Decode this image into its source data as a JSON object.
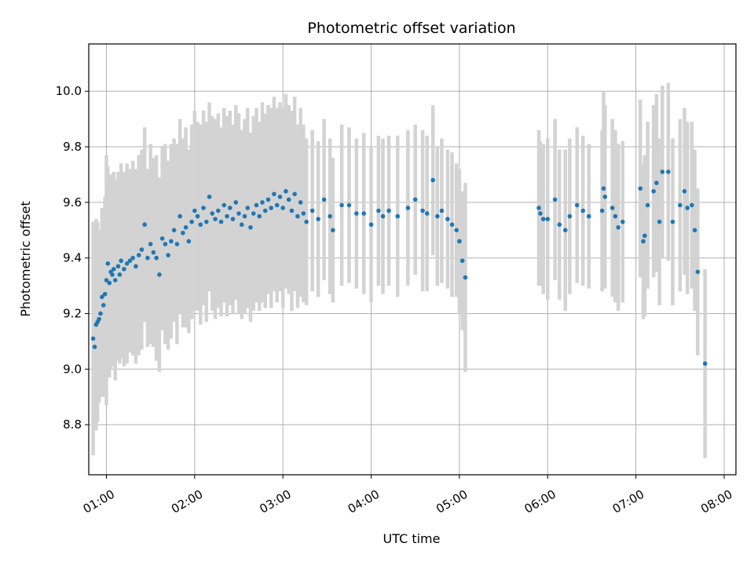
{
  "chart_data": {
    "type": "scatter",
    "title": "Photometric offset variation",
    "xlabel": "UTC time",
    "ylabel": "Photometric offset",
    "xlim": [
      "00:48",
      "08:08"
    ],
    "ylim": [
      8.62,
      10.17
    ],
    "x_ticks": [
      "01:00",
      "02:00",
      "03:00",
      "04:00",
      "05:00",
      "06:00",
      "07:00",
      "08:00"
    ],
    "y_ticks": [
      "8.8",
      "9.0",
      "9.2",
      "9.4",
      "9.6",
      "9.8",
      "10.0"
    ],
    "grid": true,
    "legend": "none",
    "colors": {
      "points": "#1f77b4",
      "error_bars": "#d3d3d3",
      "grid": "#b0b0b0"
    },
    "series": [
      {
        "values_format": "[UTC time, offset, error]",
        "points": [
          [
            "00:51",
            9.11,
            0.42
          ],
          [
            "00:52",
            9.08,
            0.27
          ],
          [
            "00:53",
            9.16,
            0.38
          ],
          [
            "00:54",
            9.17,
            0.36
          ],
          [
            "00:55",
            9.18,
            0.3
          ],
          [
            "00:56",
            9.2,
            0.3
          ],
          [
            "00:57",
            9.26,
            0.32
          ],
          [
            "00:58",
            9.23,
            0.33
          ],
          [
            "00:59",
            9.27,
            0.35
          ],
          [
            "01:00",
            9.32,
            0.45
          ],
          [
            "01:01",
            9.38,
            0.35
          ],
          [
            "01:02",
            9.31,
            0.34
          ],
          [
            "01:03",
            9.35,
            0.35
          ],
          [
            "01:04",
            9.34,
            0.33
          ],
          [
            "01:05",
            9.36,
            0.35
          ],
          [
            "01:06",
            9.32,
            0.36
          ],
          [
            "01:08",
            9.37,
            0.34
          ],
          [
            "01:09",
            9.34,
            0.32
          ],
          [
            "01:10",
            9.39,
            0.35
          ],
          [
            "01:12",
            9.36,
            0.35
          ],
          [
            "01:14",
            9.38,
            0.36
          ],
          [
            "01:16",
            9.39,
            0.33
          ],
          [
            "01:18",
            9.4,
            0.35
          ],
          [
            "01:20",
            9.37,
            0.35
          ],
          [
            "01:22",
            9.41,
            0.36
          ],
          [
            "01:24",
            9.43,
            0.36
          ],
          [
            "01:26",
            9.52,
            0.35
          ],
          [
            "01:28",
            9.4,
            0.32
          ],
          [
            "01:30",
            9.45,
            0.36
          ],
          [
            "01:32",
            9.42,
            0.34
          ],
          [
            "01:34",
            9.4,
            0.37
          ],
          [
            "01:36",
            9.34,
            0.35
          ],
          [
            "01:38",
            9.47,
            0.33
          ],
          [
            "01:40",
            9.45,
            0.36
          ],
          [
            "01:42",
            9.41,
            0.34
          ],
          [
            "01:44",
            9.46,
            0.35
          ],
          [
            "01:46",
            9.5,
            0.33
          ],
          [
            "01:48",
            9.45,
            0.36
          ],
          [
            "01:50",
            9.55,
            0.35
          ],
          [
            "01:52",
            9.49,
            0.34
          ],
          [
            "01:54",
            9.51,
            0.36
          ],
          [
            "01:56",
            9.46,
            0.33
          ],
          [
            "01:58",
            9.53,
            0.35
          ],
          [
            "02:00",
            9.57,
            0.36
          ],
          [
            "02:02",
            9.55,
            0.34
          ],
          [
            "02:04",
            9.52,
            0.36
          ],
          [
            "02:06",
            9.58,
            0.35
          ],
          [
            "02:08",
            9.53,
            0.36
          ],
          [
            "02:10",
            9.62,
            0.34
          ],
          [
            "02:12",
            9.56,
            0.35
          ],
          [
            "02:14",
            9.54,
            0.36
          ],
          [
            "02:16",
            9.57,
            0.35
          ],
          [
            "02:18",
            9.53,
            0.34
          ],
          [
            "02:20",
            9.59,
            0.35
          ],
          [
            "02:22",
            9.55,
            0.36
          ],
          [
            "02:24",
            9.58,
            0.35
          ],
          [
            "02:26",
            9.54,
            0.34
          ],
          [
            "02:28",
            9.6,
            0.35
          ],
          [
            "02:30",
            9.56,
            0.36
          ],
          [
            "02:32",
            9.52,
            0.34
          ],
          [
            "02:34",
            9.55,
            0.35
          ],
          [
            "02:36",
            9.58,
            0.36
          ],
          [
            "02:38",
            9.51,
            0.34
          ],
          [
            "02:40",
            9.56,
            0.35
          ],
          [
            "02:42",
            9.59,
            0.35
          ],
          [
            "02:44",
            9.55,
            0.34
          ],
          [
            "02:46",
            9.6,
            0.36
          ],
          [
            "02:48",
            9.57,
            0.35
          ],
          [
            "02:50",
            9.61,
            0.34
          ],
          [
            "02:52",
            9.58,
            0.36
          ],
          [
            "02:54",
            9.63,
            0.35
          ],
          [
            "02:56",
            9.59,
            0.35
          ],
          [
            "02:58",
            9.62,
            0.34
          ],
          [
            "03:00",
            9.58,
            0.36
          ],
          [
            "03:02",
            9.64,
            0.35
          ],
          [
            "03:04",
            9.61,
            0.34
          ],
          [
            "03:06",
            9.57,
            0.36
          ],
          [
            "03:08",
            9.63,
            0.35
          ],
          [
            "03:10",
            9.55,
            0.33
          ],
          [
            "03:12",
            9.6,
            0.34
          ],
          [
            "03:14",
            9.56,
            0.32
          ],
          [
            "03:16",
            9.53,
            0.3
          ],
          [
            "03:20",
            9.57,
            0.29
          ],
          [
            "03:24",
            9.54,
            0.28
          ],
          [
            "03:28",
            9.61,
            0.29
          ],
          [
            "03:32",
            9.55,
            0.28
          ],
          [
            "03:34",
            9.5,
            0.26
          ],
          [
            "03:40",
            9.59,
            0.29
          ],
          [
            "03:45",
            9.59,
            0.28
          ],
          [
            "03:50",
            9.56,
            0.27
          ],
          [
            "03:55",
            9.56,
            0.29
          ],
          [
            "04:00",
            9.52,
            0.28
          ],
          [
            "04:05",
            9.57,
            0.27
          ],
          [
            "04:08",
            9.55,
            0.28
          ],
          [
            "04:12",
            9.57,
            0.27
          ],
          [
            "04:18",
            9.55,
            0.29
          ],
          [
            "04:25",
            9.58,
            0.28
          ],
          [
            "04:30",
            9.61,
            0.27
          ],
          [
            "04:35",
            9.57,
            0.29
          ],
          [
            "04:38",
            9.56,
            0.28
          ],
          [
            "04:42",
            9.68,
            0.27
          ],
          [
            "04:45",
            9.55,
            0.25
          ],
          [
            "04:48",
            9.57,
            0.26
          ],
          [
            "04:52",
            9.54,
            0.25
          ],
          [
            "04:55",
            9.52,
            0.26
          ],
          [
            "04:58",
            9.5,
            0.24
          ],
          [
            "05:00",
            9.46,
            0.26
          ],
          [
            "05:02",
            9.39,
            0.25
          ],
          [
            "05:04",
            9.33,
            0.34
          ],
          [
            "05:54",
            9.58,
            0.28
          ],
          [
            "05:55",
            9.56,
            0.26
          ],
          [
            "05:57",
            9.54,
            0.27
          ],
          [
            "06:00",
            9.54,
            0.29
          ],
          [
            "06:05",
            9.61,
            0.29
          ],
          [
            "06:08",
            9.52,
            0.27
          ],
          [
            "06:12",
            9.5,
            0.29
          ],
          [
            "06:15",
            9.55,
            0.28
          ],
          [
            "06:20",
            9.59,
            0.28
          ],
          [
            "06:24",
            9.57,
            0.27
          ],
          [
            "06:28",
            9.55,
            0.26
          ],
          [
            "06:37",
            9.57,
            0.29
          ],
          [
            "06:38",
            9.65,
            0.35
          ],
          [
            "06:39",
            9.62,
            0.33
          ],
          [
            "06:44",
            9.58,
            0.32
          ],
          [
            "06:46",
            9.55,
            0.31
          ],
          [
            "06:48",
            9.51,
            0.3
          ],
          [
            "06:51",
            9.53,
            0.29
          ],
          [
            "07:03",
            9.65,
            0.32
          ],
          [
            "07:05",
            9.46,
            0.28
          ],
          [
            "07:06",
            9.48,
            0.29
          ],
          [
            "07:08",
            9.59,
            0.3
          ],
          [
            "07:12",
            9.64,
            0.31
          ],
          [
            "07:14",
            9.67,
            0.32
          ],
          [
            "07:16",
            9.53,
            0.3
          ],
          [
            "07:18",
            9.71,
            0.31
          ],
          [
            "07:22",
            9.71,
            0.32
          ],
          [
            "07:25",
            9.53,
            0.3
          ],
          [
            "07:30",
            9.59,
            0.31
          ],
          [
            "07:33",
            9.64,
            0.3
          ],
          [
            "07:35",
            9.58,
            0.31
          ],
          [
            "07:38",
            9.59,
            0.3
          ],
          [
            "07:40",
            9.5,
            0.29
          ],
          [
            "07:42",
            9.35,
            0.3
          ],
          [
            "07:47",
            9.02,
            0.34
          ]
        ]
      }
    ]
  }
}
